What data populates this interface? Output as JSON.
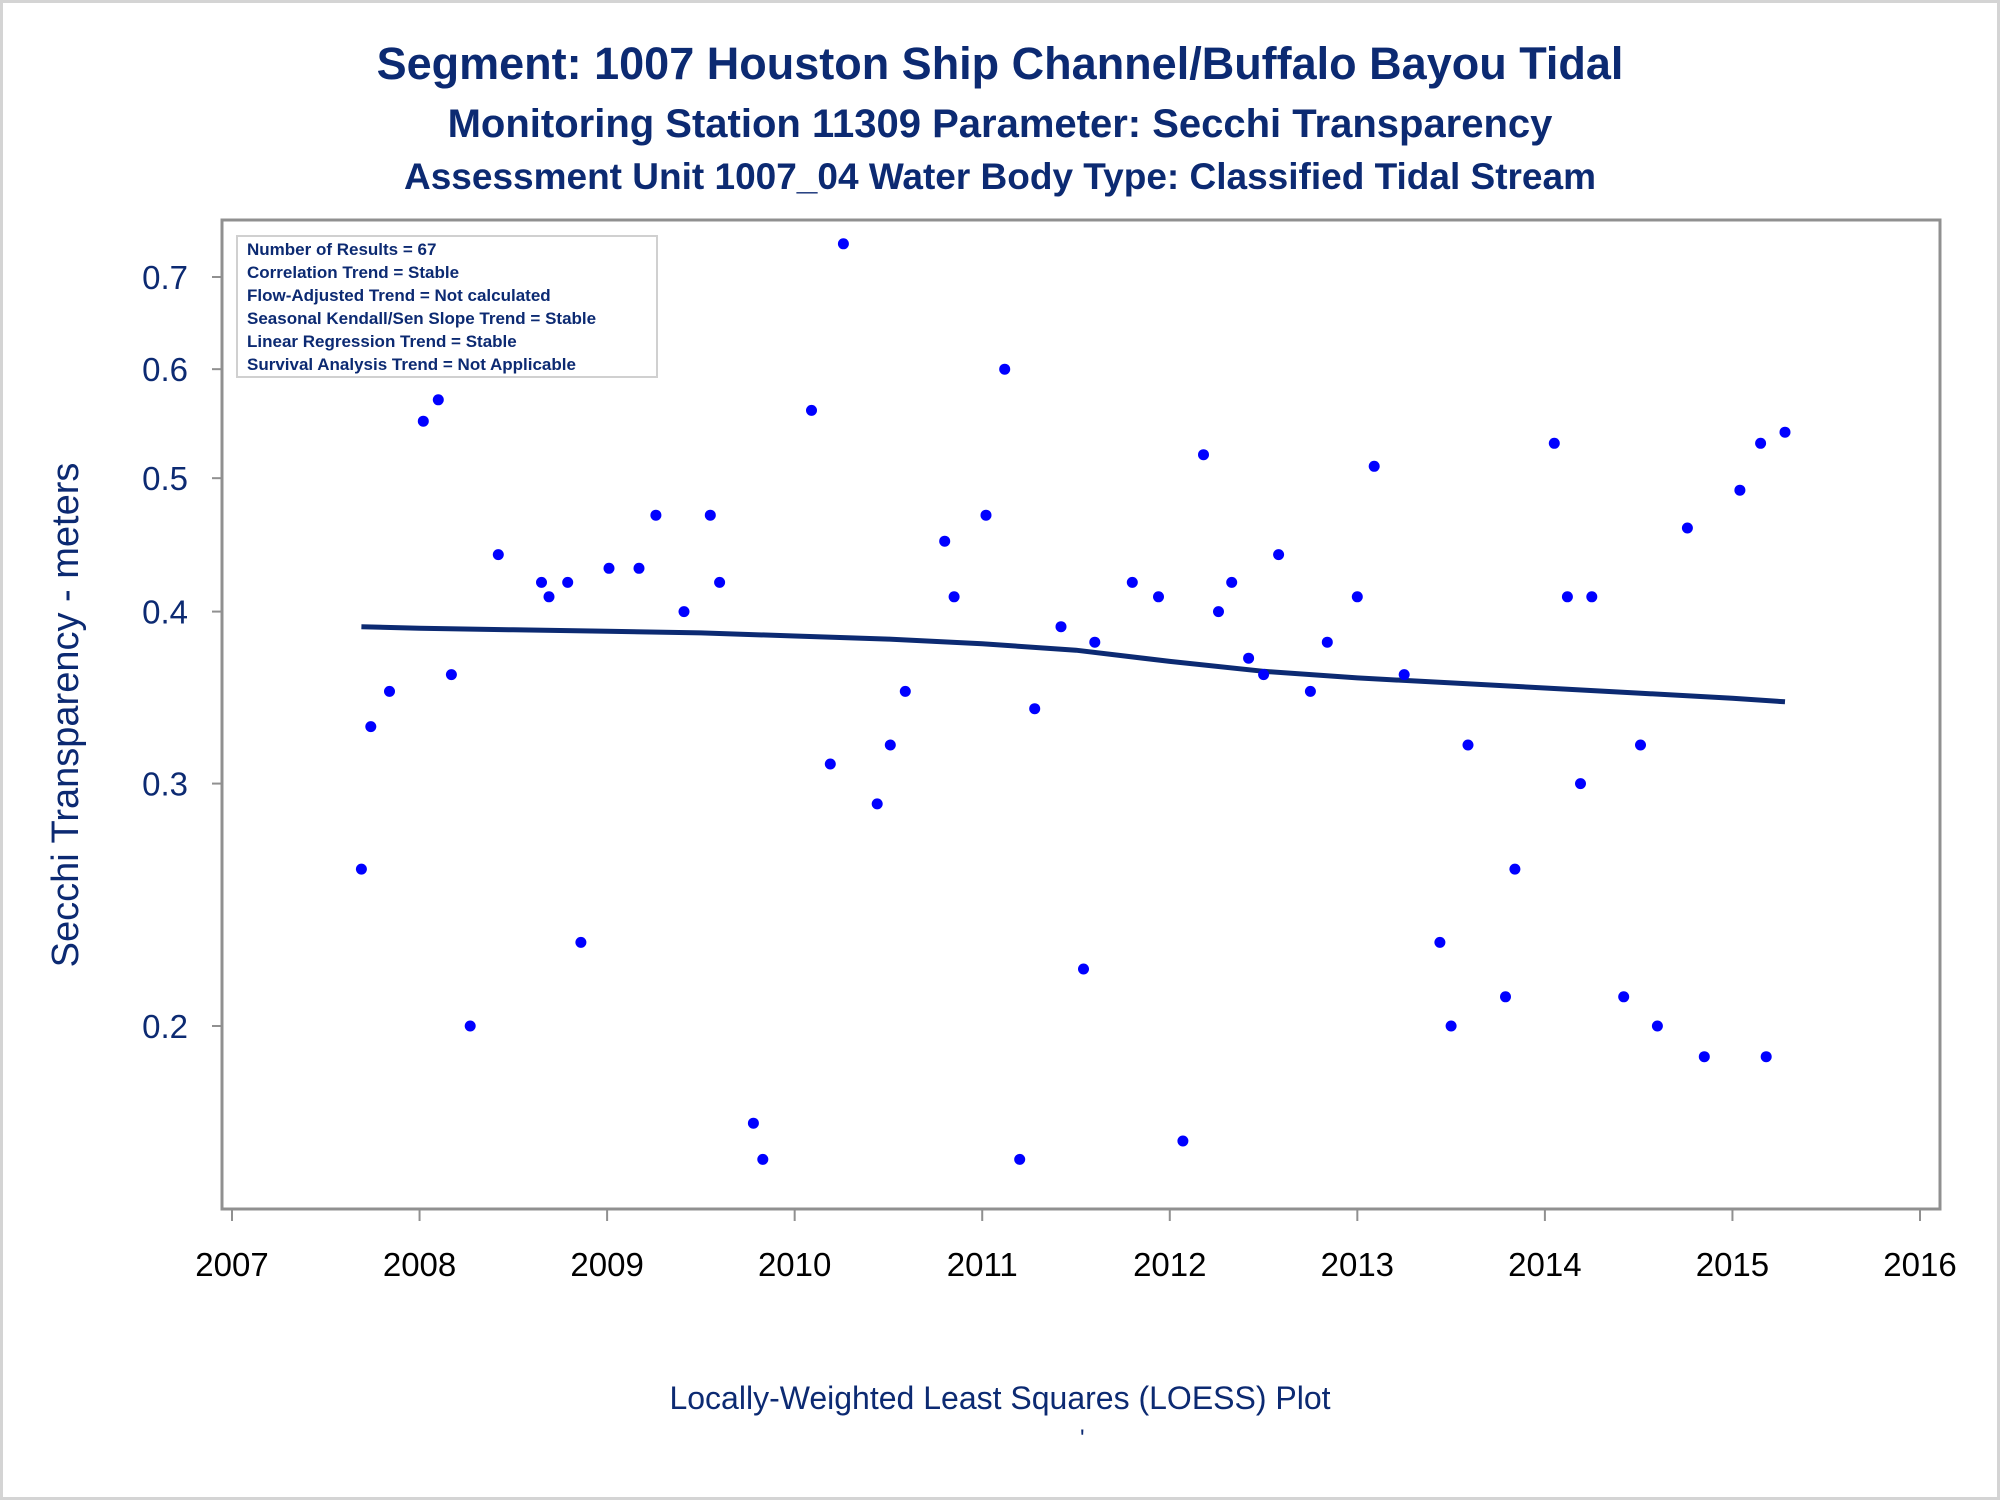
{
  "titles": {
    "line1": "Segment: 1007  Houston Ship Channel/Buffalo Bayou Tidal",
    "line2": "Monitoring Station 11309 Parameter: Secchi Transparency",
    "line3": "Assessment Unit 1007_04   Water Body Type: Classified Tidal Stream"
  },
  "footnote": "Locally-Weighted Least Squares (LOESS) Plot",
  "footnote_mark": "'",
  "info_box": [
    "Number of Results = 67",
    "Correlation Trend = Stable",
    "Flow-Adjusted Trend = Not calculated",
    "Seasonal Kendall/Sen Slope Trend = Stable",
    "Linear Regression Trend = Stable",
    "Survival Analysis Trend = Not Applicable"
  ],
  "colors": {
    "title": "#0c2a72",
    "points": "#0000ff",
    "loess": "#0c2a72",
    "axis": "#909090"
  },
  "chart_data": {
    "type": "scatter",
    "title": "Segment: 1007  Houston Ship Channel/Buffalo Bayou Tidal",
    "xlabel": "",
    "ylabel": "Secchi Transparency - meters",
    "xscale": "date",
    "yscale": "log",
    "xlim": [
      2007,
      2016
    ],
    "ylim": [
      0.15,
      0.74
    ],
    "x_ticks": [
      "2007",
      "2008",
      "2009",
      "2010",
      "2011",
      "2012",
      "2013",
      "2014",
      "2015",
      "2016"
    ],
    "y_ticks": [
      0.2,
      0.3,
      0.4,
      0.5,
      0.6,
      0.7
    ],
    "y_tick_labels": [
      "0.2",
      "0.3",
      "0.4",
      "0.5",
      "0.6",
      "0.7"
    ],
    "grid": false,
    "legend": "none",
    "series": [
      {
        "type": "scatter",
        "x": [
          2007.69,
          2007.74,
          2007.84,
          2008.02,
          2008.1,
          2008.17,
          2008.27,
          2008.42,
          2008.65,
          2008.69,
          2008.79,
          2008.86,
          2009.01,
          2009.17,
          2009.26,
          2009.41,
          2009.55,
          2009.6,
          2009.78,
          2009.83,
          2010.09,
          2010.19,
          2010.26,
          2010.44,
          2010.51,
          2010.59,
          2010.8,
          2010.85,
          2011.02,
          2011.12,
          2011.2,
          2011.28,
          2011.42,
          2011.54,
          2011.6,
          2011.8,
          2011.94,
          2012.07,
          2012.18,
          2012.26,
          2012.33,
          2012.42,
          2012.5,
          2012.58,
          2012.75,
          2012.84,
          2013.0,
          2013.09,
          2013.25,
          2013.44,
          2013.5,
          2013.59,
          2013.79,
          2013.84,
          2014.05,
          2014.12,
          2014.19,
          2014.25,
          2014.42,
          2014.51,
          2014.6,
          2014.76,
          2014.85,
          2015.04,
          2015.15,
          2015.18,
          2015.28
        ],
        "y": [
          0.26,
          0.33,
          0.35,
          0.55,
          0.57,
          0.36,
          0.2,
          0.44,
          0.42,
          0.41,
          0.42,
          0.23,
          0.43,
          0.43,
          0.47,
          0.4,
          0.47,
          0.42,
          0.17,
          0.16,
          0.56,
          0.31,
          0.74,
          0.29,
          0.32,
          0.35,
          0.45,
          0.41,
          0.47,
          0.6,
          0.16,
          0.34,
          0.39,
          0.22,
          0.38,
          0.42,
          0.41,
          0.165,
          0.52,
          0.4,
          0.42,
          0.37,
          0.36,
          0.44,
          0.35,
          0.38,
          0.41,
          0.51,
          0.36,
          0.23,
          0.2,
          0.32,
          0.21,
          0.26,
          0.53,
          0.41,
          0.3,
          0.41,
          0.21,
          0.32,
          0.2,
          0.46,
          0.19,
          0.49,
          0.53,
          0.19,
          0.54
        ]
      },
      {
        "type": "line",
        "x": [
          2007.69,
          2008.0,
          2008.5,
          2009.0,
          2009.5,
          2010.0,
          2010.5,
          2011.0,
          2011.5,
          2012.0,
          2012.5,
          2013.0,
          2013.5,
          2014.0,
          2014.5,
          2015.0,
          2015.28
        ],
        "y": [
          0.39,
          0.389,
          0.388,
          0.387,
          0.386,
          0.384,
          0.382,
          0.379,
          0.375,
          0.368,
          0.362,
          0.358,
          0.355,
          0.352,
          0.349,
          0.346,
          0.344
        ]
      }
    ]
  }
}
